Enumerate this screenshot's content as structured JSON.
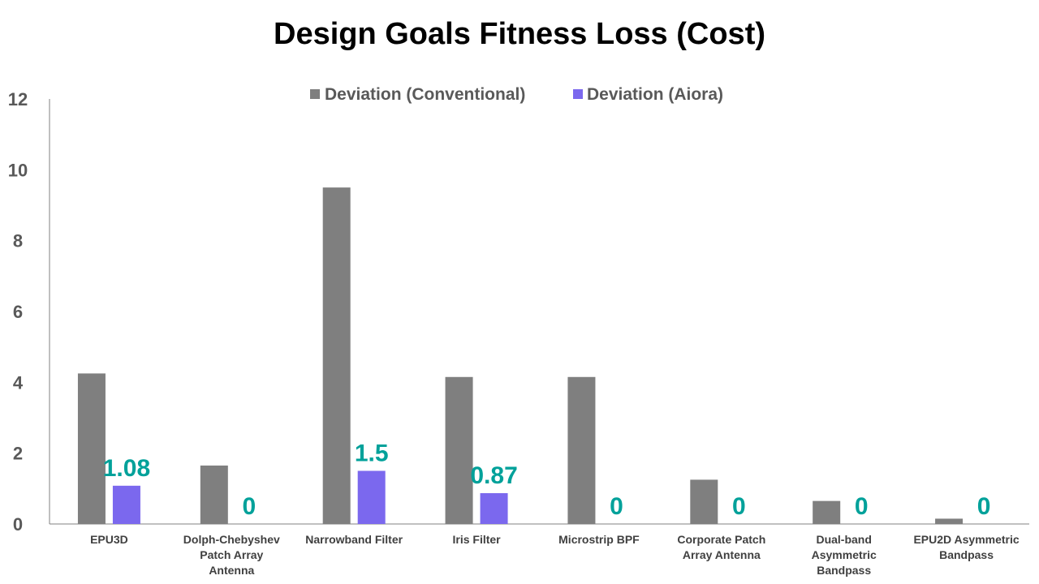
{
  "chart_data": {
    "type": "bar",
    "title": "Design Goals Fitness Loss (Cost)",
    "xlabel": "",
    "ylabel": "",
    "ylim": [
      0,
      12
    ],
    "yticks": [
      0,
      2,
      4,
      6,
      8,
      10,
      12
    ],
    "grid": false,
    "legend_position": "top-center",
    "categories": [
      "EPU3D",
      "Dolph-Chebyshev Patch Array Antenna",
      "Narrowband Filter",
      "Iris Filter",
      "Microstrip BPF",
      "Corporate Patch Array Antenna",
      "Dual-band Asymmetric Bandpass",
      "EPU2D Asymmetric Bandpass"
    ],
    "category_label_lines": [
      [
        "EPU3D"
      ],
      [
        "Dolph-Chebyshev",
        "Patch Array",
        "Antenna"
      ],
      [
        "Narrowband Filter"
      ],
      [
        "Iris Filter"
      ],
      [
        "Microstrip BPF"
      ],
      [
        "Corporate Patch",
        "Array Antenna"
      ],
      [
        "Dual-band",
        "Asymmetric",
        "Bandpass"
      ],
      [
        "EPU2D Asymmetric",
        "Bandpass"
      ]
    ],
    "series": [
      {
        "name": "Deviation (Conventional)",
        "color": "#7f7f7f",
        "values": [
          4.25,
          1.65,
          9.5,
          4.15,
          4.15,
          1.25,
          0.65,
          0.15
        ],
        "data_labels": null
      },
      {
        "name": "Deviation (Aiora)",
        "color": "#7b68ee",
        "values": [
          1.08,
          0,
          1.5,
          0.87,
          0,
          0,
          0,
          0
        ],
        "data_labels": [
          "1.08",
          "0",
          "1.5",
          "0.87",
          "0",
          "0",
          "0",
          "0"
        ],
        "data_label_color": "#00a19a"
      }
    ]
  }
}
